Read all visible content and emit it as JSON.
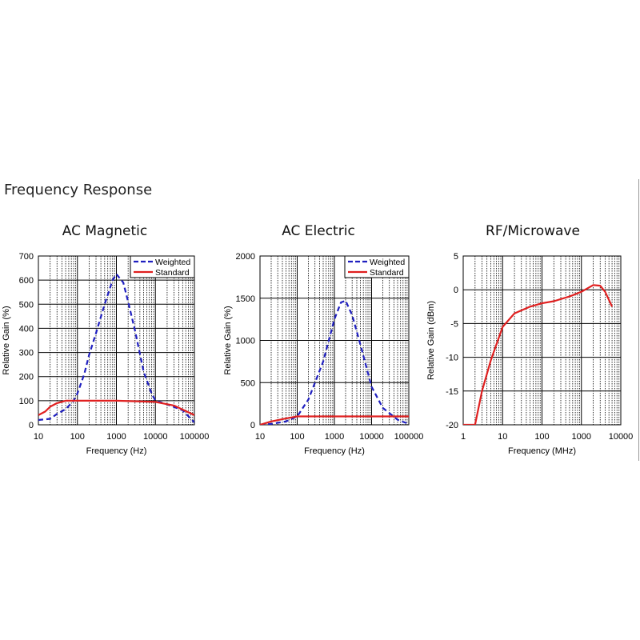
{
  "page": {
    "section_title": "Frequency Response"
  },
  "chart_data": [
    {
      "type": "line",
      "title": "AC Magnetic",
      "xlabel": "Frequency (Hz)",
      "ylabel": "Relative Gain (%)",
      "x_scale": "log",
      "xlim": [
        10,
        100000
      ],
      "ylim": [
        0,
        700
      ],
      "x_ticks": [
        "10",
        "100",
        "1000",
        "10000",
        "100000"
      ],
      "y_ticks": [
        "0",
        "100",
        "200",
        "300",
        "400",
        "500",
        "600",
        "700"
      ],
      "grid": true,
      "legend": "top-right",
      "series": [
        {
          "name": "Weighted",
          "style": "dashed",
          "color": "#1f1fbf",
          "x": [
            10,
            20,
            30,
            50,
            80,
            100,
            150,
            200,
            300,
            500,
            800,
            1000,
            1500,
            2000,
            3000,
            5000,
            8000,
            10000,
            20000,
            50000,
            100000
          ],
          "y": [
            20,
            25,
            45,
            65,
            100,
            130,
            210,
            290,
            380,
            500,
            600,
            625,
            590,
            510,
            390,
            220,
            130,
            100,
            85,
            60,
            10
          ]
        },
        {
          "name": "Standard",
          "style": "solid",
          "color": "#e02020",
          "x": [
            10,
            15,
            20,
            30,
            50,
            100,
            1000,
            10000,
            30000,
            100000
          ],
          "y": [
            40,
            55,
            75,
            90,
            100,
            100,
            100,
            95,
            80,
            40
          ]
        }
      ]
    },
    {
      "type": "line",
      "title": "AC Electric",
      "xlabel": "Frequency (Hz)",
      "ylabel": "Relative Gain (%)",
      "x_scale": "log",
      "xlim": [
        10,
        100000
      ],
      "ylim": [
        0,
        2000
      ],
      "x_ticks": [
        "10",
        "100",
        "1000",
        "10000",
        "100000"
      ],
      "y_ticks": [
        "0",
        "500",
        "1000",
        "1500",
        "2000"
      ],
      "grid": true,
      "legend": "top-right",
      "series": [
        {
          "name": "Weighted",
          "style": "dashed",
          "color": "#1f1fbf",
          "x": [
            10,
            20,
            50,
            100,
            200,
            500,
            1000,
            1500,
            2000,
            3000,
            5000,
            10000,
            20000,
            50000,
            100000
          ],
          "y": [
            0,
            10,
            40,
            100,
            300,
            750,
            1250,
            1450,
            1470,
            1300,
            950,
            450,
            200,
            60,
            10
          ]
        },
        {
          "name": "Standard",
          "style": "solid",
          "color": "#e02020",
          "x": [
            10,
            20,
            50,
            100,
            1000,
            10000,
            100000
          ],
          "y": [
            0,
            40,
            75,
            100,
            100,
            100,
            100
          ]
        }
      ]
    },
    {
      "type": "line",
      "title": "RF/Microwave",
      "xlabel": "Frequency (MHz)",
      "ylabel": "Relative Gain (dBm)",
      "x_scale": "log",
      "xlim": [
        1,
        10000
      ],
      "ylim": [
        -20,
        5
      ],
      "x_ticks": [
        "1",
        "10",
        "100",
        "1000",
        "10000"
      ],
      "y_ticks": [
        "-20",
        "-15",
        "-10",
        "-5",
        "0",
        "5"
      ],
      "grid": true,
      "series": [
        {
          "name": "",
          "style": "solid",
          "color": "#e02020",
          "x": [
            1,
            2,
            3,
            5,
            10,
            20,
            50,
            100,
            200,
            500,
            1000,
            2000,
            3000,
            4000,
            6000
          ],
          "y": [
            -20,
            -20,
            -15,
            -10.5,
            -5.5,
            -3.5,
            -2.5,
            -2,
            -1.7,
            -1,
            -0.3,
            0.7,
            0.6,
            -0.3,
            -2.5
          ]
        }
      ]
    }
  ]
}
